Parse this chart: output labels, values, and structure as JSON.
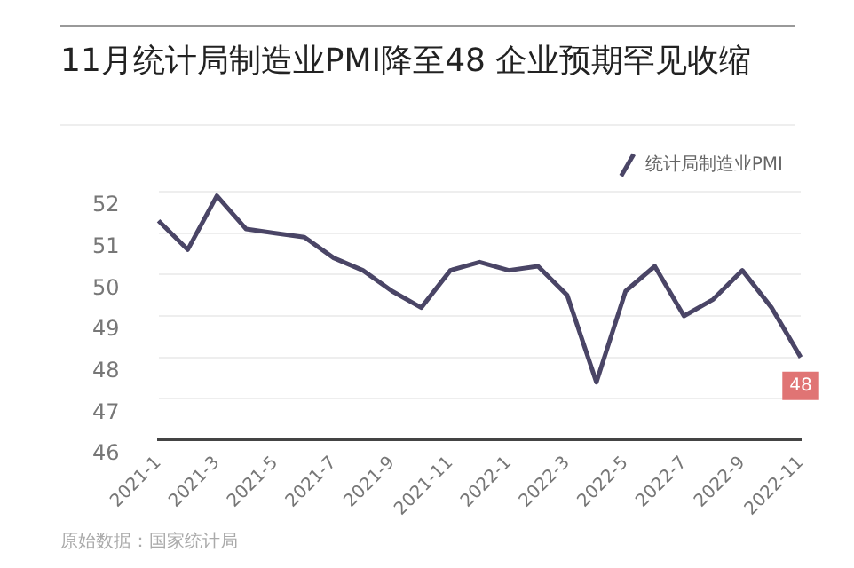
{
  "chart_data": {
    "type": "line",
    "title": "11月统计局制造业PMI降至48 企业预期罕见收缩",
    "categories": [
      "2021-1",
      null,
      "2021-3",
      null,
      "2021-5",
      null,
      "2021-7",
      null,
      "2021-9",
      null,
      "2021-11",
      null,
      "2022-1",
      null,
      "2022-3",
      null,
      "2022-5",
      null,
      "2022-7",
      null,
      "2022-9",
      null,
      "2022-11"
    ],
    "series": [
      {
        "name": "统计局制造业PMI",
        "color": "#4a4566",
        "values": [
          51.3,
          50.6,
          51.9,
          51.1,
          51.0,
          50.9,
          50.4,
          50.1,
          49.6,
          49.2,
          50.1,
          50.3,
          50.1,
          50.2,
          49.5,
          47.4,
          49.6,
          50.2,
          49.0,
          49.4,
          50.1,
          49.2,
          48.0
        ],
        "value_labels": [
          null,
          null,
          null,
          null,
          null,
          null,
          null,
          null,
          null,
          null,
          null,
          null,
          null,
          null,
          null,
          null,
          null,
          null,
          null,
          null,
          null,
          null,
          "48"
        ]
      }
    ],
    "ylim": [
      46,
      52
    ],
    "yticks": [
      46,
      47,
      48,
      49,
      50,
      51,
      52
    ],
    "grid": "y",
    "legend": "top right",
    "marker": "none",
    "line_style": "solid",
    "annotations": [
      "原始数据：国家统计局"
    ]
  }
}
